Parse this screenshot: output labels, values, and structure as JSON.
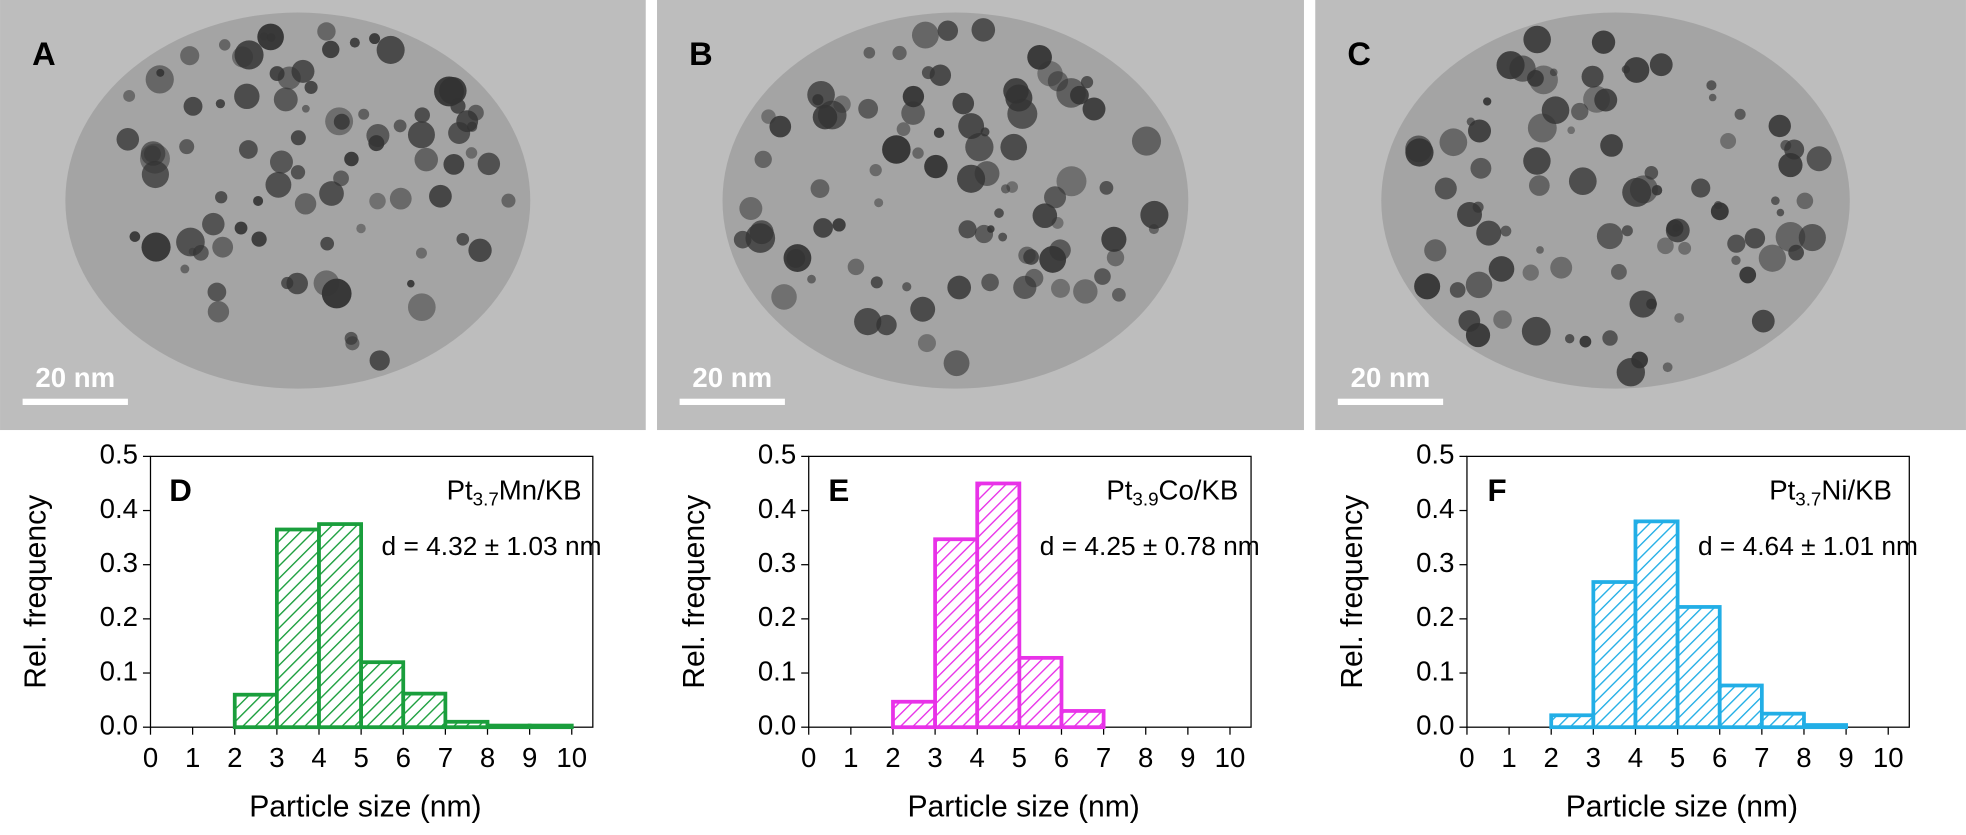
{
  "panels": [
    {
      "label": "A",
      "scale_bar": "20 nm"
    },
    {
      "label": "B",
      "scale_bar": "20 nm"
    },
    {
      "label": "C",
      "scale_bar": "20 nm"
    }
  ],
  "chart_data": [
    {
      "type": "histogram",
      "panel_label": "D",
      "sample": {
        "main": "Pt",
        "sub": "3.7",
        "rest": "Mn/KB"
      },
      "annotation": "d = 4.32 ± 1.03 nm",
      "xlabel": "Particle size (nm)",
      "ylabel": "Rel. frequency",
      "bins": [
        2,
        3,
        4,
        5,
        6,
        7,
        8,
        9,
        10
      ],
      "values": [
        0.06,
        0.365,
        0.375,
        0.12,
        0.062,
        0.01,
        0.003,
        0.003
      ],
      "color": "#1a9e3c",
      "xlim": [
        0,
        10.5
      ],
      "ylim": [
        0,
        0.5
      ],
      "xticks": [
        0,
        1,
        2,
        3,
        4,
        5,
        6,
        7,
        8,
        9,
        10
      ],
      "yticks": [
        {
          "value": 0,
          "label": "0.0"
        },
        0.1,
        0.2,
        0.3,
        0.4,
        0.5
      ]
    },
    {
      "type": "histogram",
      "panel_label": "E",
      "sample": {
        "main": "Pt",
        "sub": "3.9",
        "rest": "Co/KB"
      },
      "annotation": "d = 4.25 ± 0.78 nm",
      "xlabel": "Particle size (nm)",
      "ylabel": "Rel. frequency",
      "bins": [
        2,
        3,
        4,
        5,
        6,
        7
      ],
      "values": [
        0.047,
        0.347,
        0.45,
        0.128,
        0.03
      ],
      "color": "#e832e8",
      "xlim": [
        0,
        10.5
      ],
      "ylim": [
        0,
        0.5
      ],
      "xticks": [
        0,
        1,
        2,
        3,
        4,
        5,
        6,
        7,
        8,
        9,
        10
      ],
      "yticks": [
        {
          "value": 0,
          "label": "0.0"
        },
        0.1,
        0.2,
        0.3,
        0.4,
        0.5
      ]
    },
    {
      "type": "histogram",
      "panel_label": "F",
      "sample": {
        "main": "Pt",
        "sub": "3.7",
        "rest": "Ni/KB"
      },
      "annotation": "d = 4.64 ± 1.01 nm",
      "xlabel": "Particle size (nm)",
      "ylabel": "Rel. frequency",
      "bins": [
        2,
        3,
        4,
        5,
        6,
        7,
        8,
        9
      ],
      "values": [
        0.022,
        0.268,
        0.38,
        0.222,
        0.077,
        0.025,
        0.004
      ],
      "color": "#22aee6",
      "xlim": [
        0,
        10.5
      ],
      "ylim": [
        0,
        0.5
      ],
      "xticks": [
        0,
        1,
        2,
        3,
        4,
        5,
        6,
        7,
        8,
        9,
        10
      ],
      "yticks": [
        {
          "value": 0,
          "label": "0.0"
        },
        0.1,
        0.2,
        0.3,
        0.4,
        0.5
      ]
    }
  ]
}
